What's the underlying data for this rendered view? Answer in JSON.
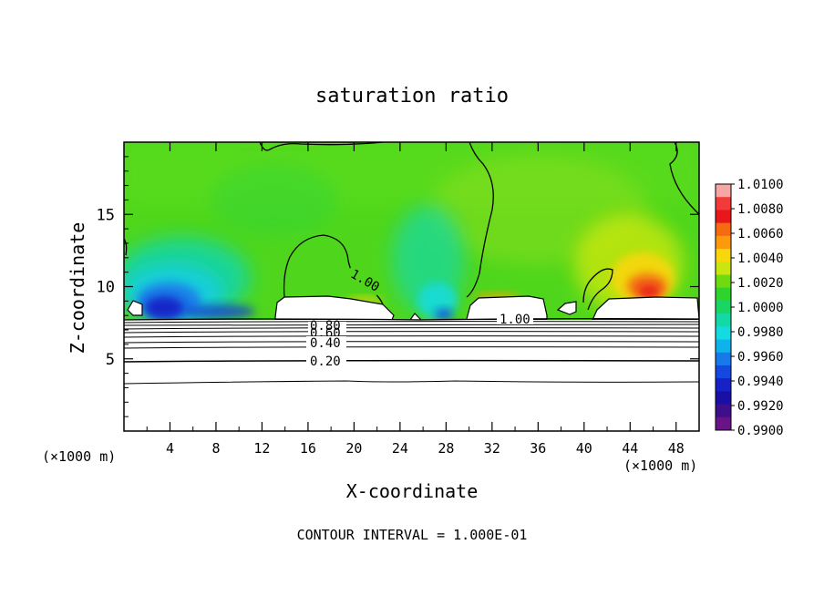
{
  "chart_data": {
    "type": "heatmap",
    "title": "saturation ratio",
    "xlabel": "X-coordinate",
    "ylabel": "Z-coordinate",
    "x_unit": "(×1000 m)",
    "x_unit_right": "(×1000 m)",
    "xlim": [
      0,
      50
    ],
    "ylim": [
      0,
      20
    ],
    "x_ticks": [
      4,
      8,
      12,
      16,
      20,
      24,
      28,
      32,
      36,
      40,
      44,
      48
    ],
    "y_ticks": [
      5,
      10,
      15
    ],
    "grid": false,
    "footer": "CONTOUR INTERVAL = 1.000E-01",
    "colorbar": {
      "min": 0.99,
      "max": 1.01,
      "labels": [
        "1.0100",
        "1.0080",
        "1.0060",
        "1.0040",
        "1.0020",
        "1.0000",
        "0.9980",
        "0.9960",
        "0.9940",
        "0.9920",
        "0.9900"
      ],
      "colors": [
        "#f7a6a6",
        "#f23a3a",
        "#e8171b",
        "#f46b12",
        "#fb9b0b",
        "#f9d70a",
        "#c9e70f",
        "#6fda10",
        "#2ed32c",
        "#19d563",
        "#14d9a7",
        "#14dbe0",
        "#0fb3ec",
        "#1779ea",
        "#1448df",
        "#1522c7",
        "#1a0fa5",
        "#3e0f8a",
        "#6a1388"
      ]
    },
    "contour_labels": [
      "1.00",
      "1.00",
      "0.80",
      "0.60",
      "0.40",
      "0.20"
    ]
  }
}
